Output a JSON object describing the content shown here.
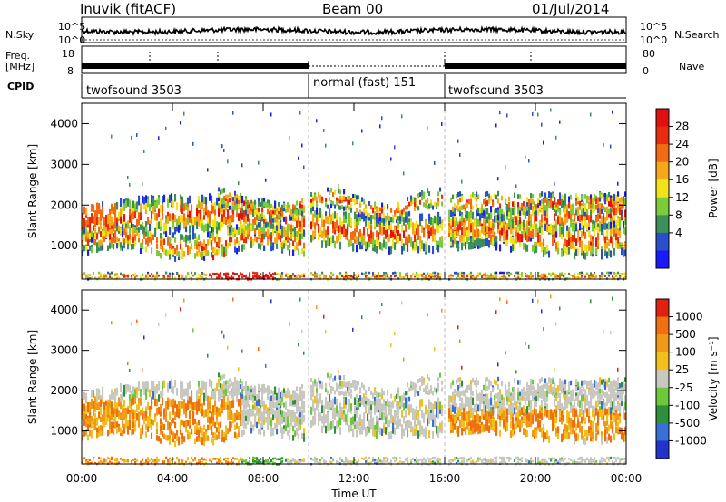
{
  "header": {
    "station": "Inuvik (fitACF)",
    "beam": "Beam 00",
    "date": "01/Jul/2014"
  },
  "strip": {
    "nsky_label": "N.Sky",
    "nsearch_label": "N.Search",
    "freq_label_top": "Freq.",
    "freq_label_bottom": "[MHz]",
    "nave_label": "Nave",
    "cpid_label": "CPID",
    "nsky_ticks": [
      "10^5",
      "10^0"
    ],
    "nsearch_ticks": [
      "10^5",
      "10^0"
    ],
    "freq_ticks": [
      "18",
      "8"
    ],
    "nave_ticks": [
      "80",
      "0"
    ]
  },
  "cpid_segments": [
    {
      "label": "twofsound 3503",
      "start_hr": 0,
      "end_hr": 10
    },
    {
      "label": "normal (fast) 151",
      "start_hr": 10,
      "end_hr": 16
    },
    {
      "label": "twofsound 3503",
      "start_hr": 16,
      "end_hr": 24
    }
  ],
  "chart_data": [
    {
      "type": "heatmap",
      "quantity": "power",
      "ylabel": "Slant Range [km]",
      "xlim": [
        0,
        24
      ],
      "ylim": [
        180,
        4500
      ],
      "yticks": [
        1000,
        2000,
        3000,
        4000
      ],
      "colorbar_label": "Power [dB]",
      "colorbar_ticks": [
        "4",
        "8",
        "12",
        "16",
        "20",
        "24",
        "28"
      ],
      "colorbar_colors": [
        "#1a1aff",
        "#2b4fcc",
        "#3c8f5a",
        "#7ccc3a",
        "#f2e21a",
        "#f5a81a",
        "#f26a12",
        "#e82a10",
        "#e01010"
      ]
    },
    {
      "type": "heatmap",
      "quantity": "velocity",
      "ylabel": "Slant Range [km]",
      "xlabel": "Time UT",
      "xlim": [
        0,
        24
      ],
      "ylim": [
        180,
        4500
      ],
      "xticks": [
        "00:00",
        "04:00",
        "08:00",
        "12:00",
        "16:00",
        "20:00",
        "00:00"
      ],
      "yticks": [
        1000,
        2000,
        3000,
        4000
      ],
      "colorbar_label": "Velocity [m s⁻¹]",
      "colorbar_ticks": [
        "1000",
        "500",
        "100",
        "25",
        "-25",
        "-100",
        "-500",
        "-1000"
      ],
      "colorbar_colors": [
        "#2233cc",
        "#3a6fd8",
        "#2f8f3a",
        "#6cc93a",
        "#c8c8c0",
        "#f2c01a",
        "#f29818",
        "#f07010",
        "#e02010"
      ]
    }
  ]
}
